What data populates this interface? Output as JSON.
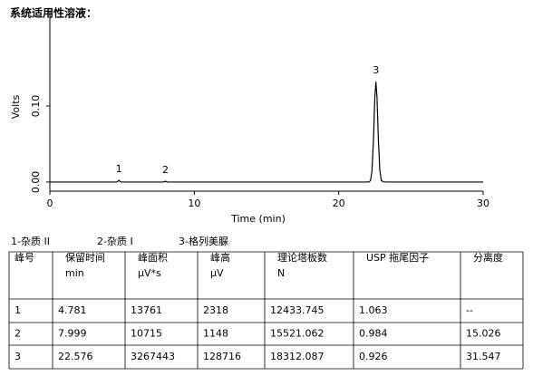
{
  "header": {
    "title": "系统适用性溶液："
  },
  "chart_data": {
    "type": "line",
    "y_label": "Volts",
    "x_label": "Time (min)",
    "xlim": [
      0,
      30
    ],
    "xticks": [
      0,
      10,
      20,
      30
    ],
    "ylim": [
      -0.012,
      0.224
    ],
    "yticks": [
      {
        "value": 0,
        "label": "0.00"
      },
      {
        "value": 0.1,
        "label": "0.10"
      }
    ],
    "series": [
      {
        "color": "#000000",
        "x": [
          0,
          4.6,
          4.7,
          4.781,
          4.86,
          4.95,
          7.85,
          7.95,
          7.999,
          8.05,
          8.15,
          21.9,
          22.1,
          22.2,
          22.3,
          22.4,
          22.5,
          22.576,
          22.65,
          22.75,
          22.85,
          22.95,
          23.1,
          23.3,
          30
        ],
        "values": [
          0,
          0,
          0.0008,
          0.0022,
          0.0008,
          0,
          0,
          0.0005,
          0.0011,
          0.0005,
          0,
          0,
          0.0002,
          0.002,
          0.014,
          0.053,
          0.111,
          0.132,
          0.112,
          0.054,
          0.015,
          0.002,
          0.0003,
          0,
          0
        ]
      }
    ],
    "annotations": [
      {
        "text": "1",
        "x": 4.781
      },
      {
        "text": "2",
        "x": 7.999
      },
      {
        "text": "3",
        "x": 22.576
      }
    ]
  },
  "peak_legend": [
    "1-杂质 II",
    "2-杂质 I",
    "3-格列美脲"
  ],
  "table": {
    "header": [
      [
        "峰号"
      ],
      [
        "保留时间",
        "min"
      ],
      [
        "峰面积",
        "μV*s"
      ],
      [
        "峰高",
        "μV"
      ],
      [
        "理论塔板数",
        "N"
      ],
      [
        "USP 拖尾因子"
      ],
      [
        "分离度"
      ]
    ],
    "rows": [
      [
        "1",
        "4.781",
        "13761",
        "2318",
        "12433.745",
        "1.063",
        "--"
      ],
      [
        "2",
        "7.999",
        "10715",
        "1148",
        "15521.062",
        "0.984",
        "15.026"
      ],
      [
        "3",
        "22.576",
        "3267443",
        "128716",
        "18312.087",
        "0.926",
        "31.547"
      ]
    ]
  }
}
